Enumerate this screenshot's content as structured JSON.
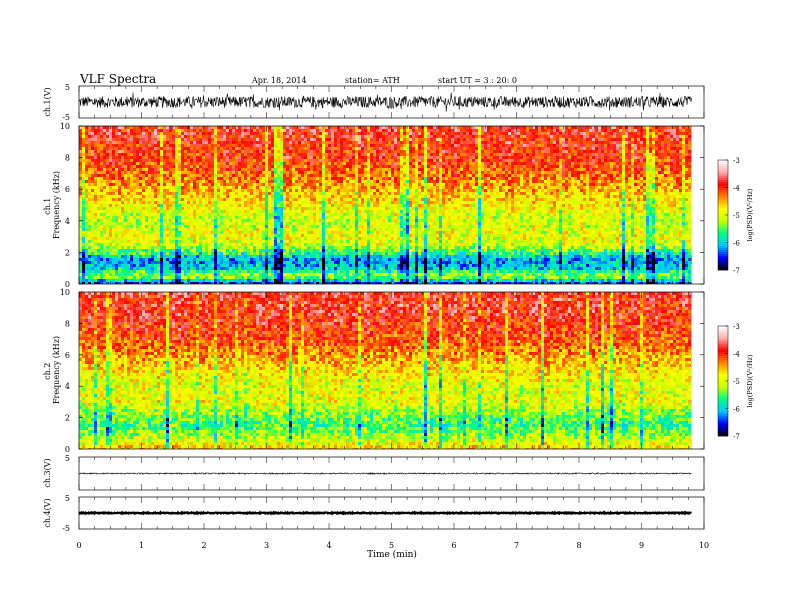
{
  "header": {
    "title": "VLF  Spectra",
    "date": "Apr. 18, 2014",
    "station": "station= ATH",
    "start_ut": "start  UT =  3  : 20: 0"
  },
  "xaxis": {
    "label": "Time  (min)",
    "ticks": [
      "0",
      "1",
      "2",
      "3",
      "4",
      "5",
      "6",
      "7",
      "8",
      "9",
      "10"
    ]
  },
  "colorbar": {
    "label": "log(PSD)(V²/Hz)",
    "ticks": [
      "-3",
      "-4",
      "-5",
      "-6",
      "-7"
    ],
    "colors": [
      "#000000",
      "#0000ff",
      "#00c8ff",
      "#00ff80",
      "#c8ff00",
      "#ffff00",
      "#ff8000",
      "#ff0000",
      "#ffb0b0",
      "#ffffff"
    ]
  },
  "chart_data": [
    {
      "type": "line",
      "panel": "ch1-waveform",
      "ylabel": "ch.1(V)",
      "ylim": [
        -5,
        5
      ],
      "yticks": [
        "5",
        "-5"
      ],
      "xlim": [
        0,
        10
      ],
      "x_data_end": 9.8,
      "mean": 0,
      "noise_amplitude": 1.8
    },
    {
      "type": "heatmap",
      "panel": "ch1-spectrogram",
      "ylabel": "ch.1\nFrequency  (kHz)",
      "ylabel_lines": [
        "ch.1",
        "Frequency  (kHz)"
      ],
      "ylim": [
        0,
        10
      ],
      "yticks": [
        "0",
        "2",
        "4",
        "6",
        "8",
        "10"
      ],
      "xlim": [
        0,
        10
      ],
      "x_data_end": 9.8,
      "zlim": [
        -7,
        -3
      ],
      "freq_profile_khz": [
        0,
        0.5,
        1,
        1.5,
        2,
        2.5,
        3,
        4,
        5,
        6,
        7,
        8,
        9,
        10
      ],
      "log_psd_profile": [
        -6.5,
        -5.2,
        -6.0,
        -6.2,
        -5.6,
        -5.0,
        -4.9,
        -5.1,
        -4.8,
        -4.5,
        -4.2,
        -4.0,
        -3.9,
        -3.8
      ]
    },
    {
      "type": "heatmap",
      "panel": "ch2-spectrogram",
      "ylabel": "ch.2\nFrequency  (kHz)",
      "ylabel_lines": [
        "ch.2",
        "Frequency  (kHz)"
      ],
      "ylim": [
        0,
        10
      ],
      "yticks": [
        "0",
        "2",
        "4",
        "6",
        "8",
        "10"
      ],
      "xlim": [
        0,
        10
      ],
      "x_data_end": 9.8,
      "zlim": [
        -7,
        -3
      ],
      "freq_profile_khz": [
        0,
        0.5,
        1,
        1.5,
        2,
        2.5,
        3,
        4,
        5,
        6,
        7,
        8,
        9,
        10
      ],
      "log_psd_profile": [
        -4.6,
        -5.0,
        -5.3,
        -5.6,
        -5.4,
        -5.2,
        -4.9,
        -5.0,
        -4.7,
        -4.4,
        -4.1,
        -3.95,
        -3.85,
        -3.8
      ]
    },
    {
      "type": "line",
      "panel": "ch3-waveform",
      "ylabel": "ch.3(V)",
      "ylim": [
        -5,
        5
      ],
      "yticks": [
        "5"
      ],
      "xlim": [
        0,
        10
      ],
      "x_data_end": 9.8,
      "mean": 0,
      "noise_amplitude": 0.2
    },
    {
      "type": "line",
      "panel": "ch4-waveform",
      "ylabel": "ch.4(V)",
      "ylim": [
        -5,
        5
      ],
      "yticks": [
        "5",
        "-5"
      ],
      "xlim": [
        0,
        10
      ],
      "x_data_end": 9.8,
      "mean": 0,
      "noise_amplitude": 0.15
    }
  ]
}
